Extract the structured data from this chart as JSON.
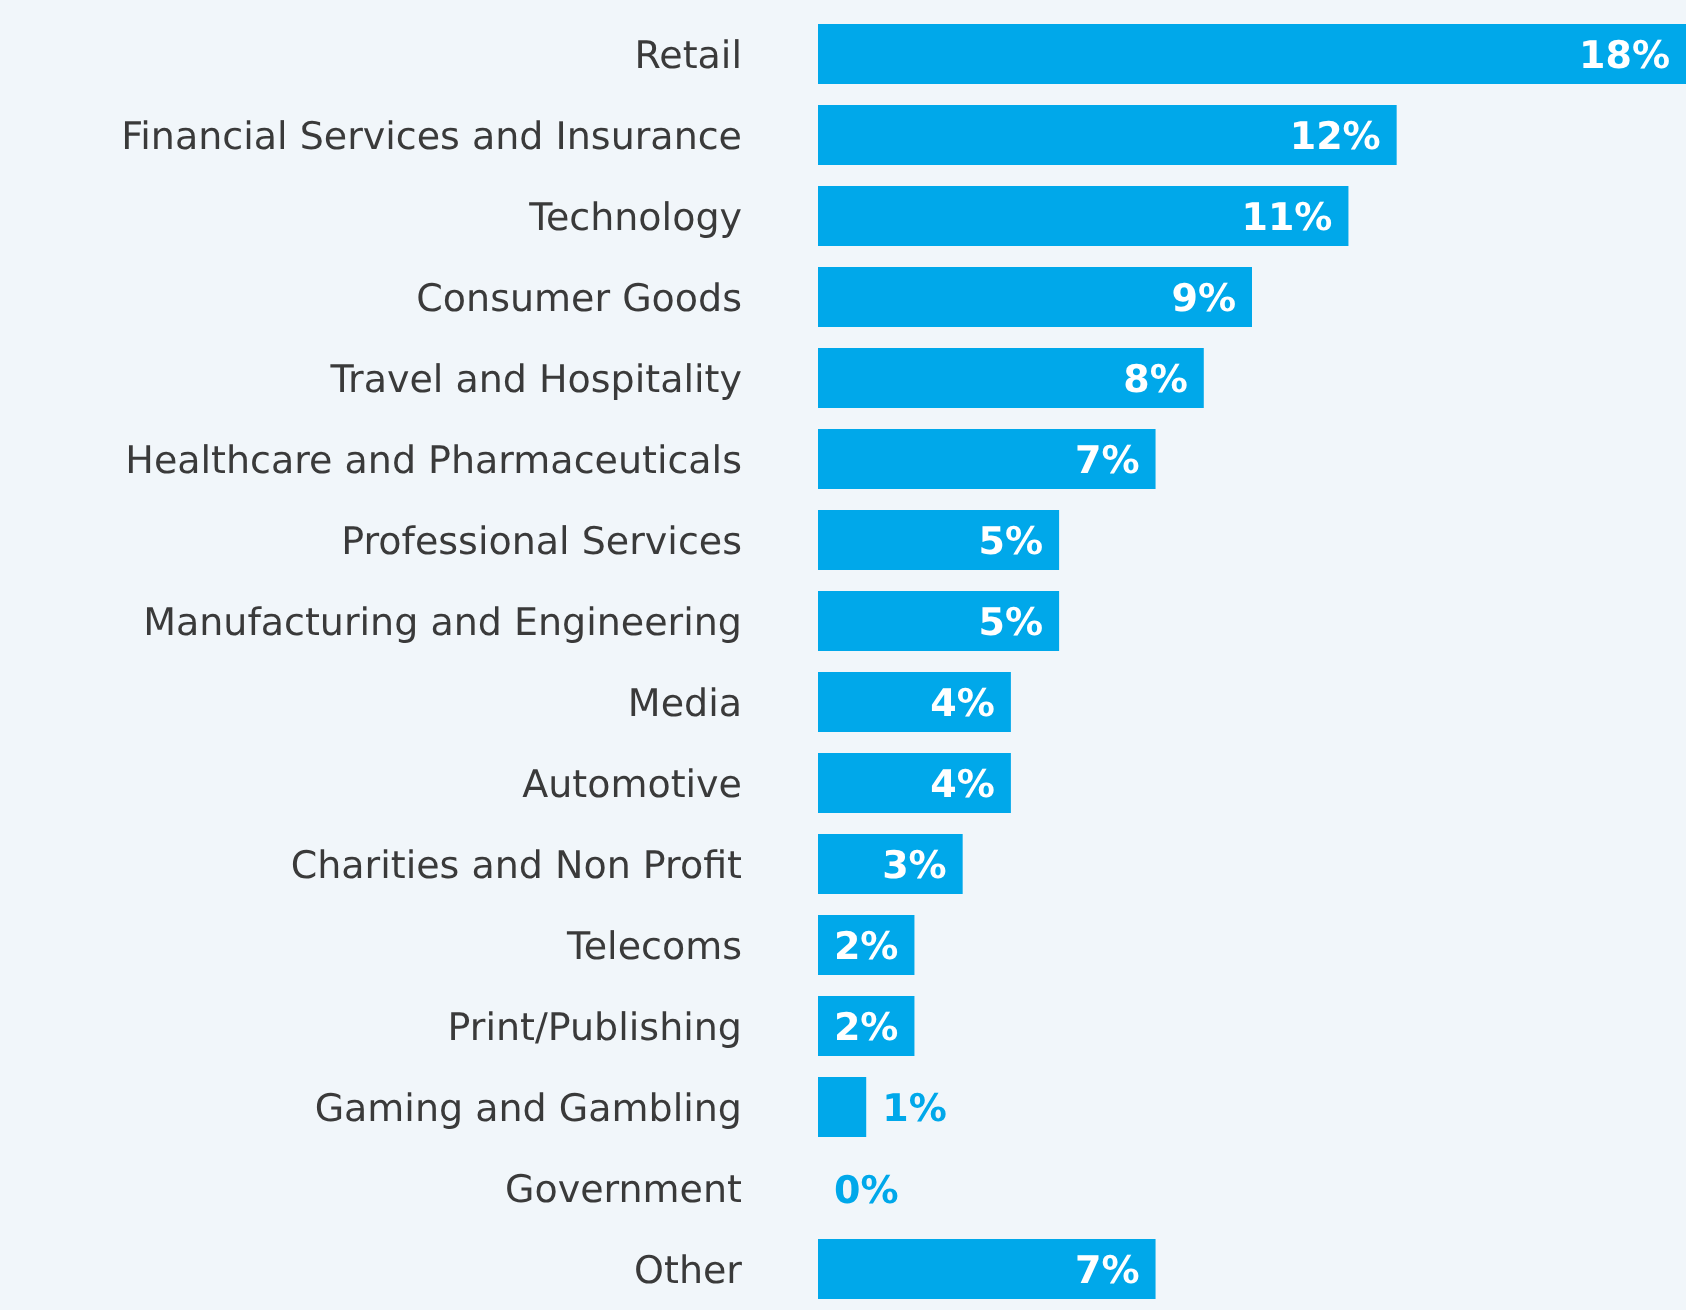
{
  "chart_data": {
    "type": "bar",
    "orientation": "horizontal",
    "categories": [
      "Retail",
      "Financial Services and Insurance",
      "Technology",
      "Consumer Goods",
      "Travel and Hospitality",
      "Healthcare and Pharmaceuticals",
      "Professional Services",
      "Manufacturing and Engineering",
      "Media",
      "Automotive",
      "Charities and Non Profit",
      "Telecoms",
      "Print/Publishing",
      "Gaming and Gambling",
      "Government",
      "Other"
    ],
    "values": [
      18,
      12,
      11,
      9,
      8,
      7,
      5,
      5,
      4,
      4,
      3,
      2,
      2,
      1,
      0,
      7
    ],
    "value_labels": [
      "18%",
      "12%",
      "11%",
      "9%",
      "8%",
      "7%",
      "5%",
      "5%",
      "4%",
      "4%",
      "3%",
      "2%",
      "2%",
      "1%",
      "0%",
      "7%"
    ],
    "color": "#00a8ea",
    "tick_labels": "y"
  }
}
